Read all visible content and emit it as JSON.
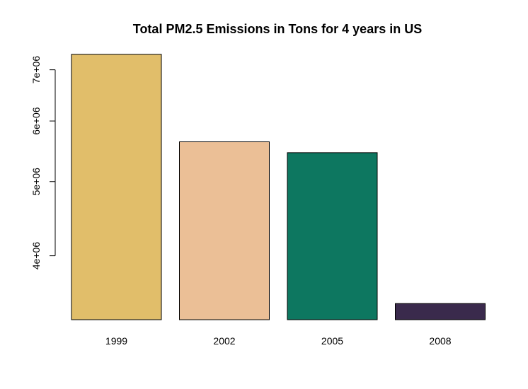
{
  "chart_data": {
    "type": "bar",
    "title": "Total PM2.5 Emissions in Tons for 4 years in US",
    "xlabel": "",
    "ylabel": "",
    "categories": [
      "1999",
      "2002",
      "2005",
      "2008"
    ],
    "values": [
      7332967,
      5635780,
      5454703,
      3464206
    ],
    "colors": [
      "#E1BE6A",
      "#EBBF96",
      "#0D7760",
      "#3A2A4C"
    ],
    "y_scale": "log",
    "ylim": [
      3300000,
      7600000
    ],
    "y_ticks": [
      {
        "value": 4000000,
        "label": "4e+06"
      },
      {
        "value": 5000000,
        "label": "5e+06"
      },
      {
        "value": 6000000,
        "label": "6e+06"
      },
      {
        "value": 7000000,
        "label": "7e+06"
      }
    ],
    "grid": false,
    "legend": "none"
  }
}
